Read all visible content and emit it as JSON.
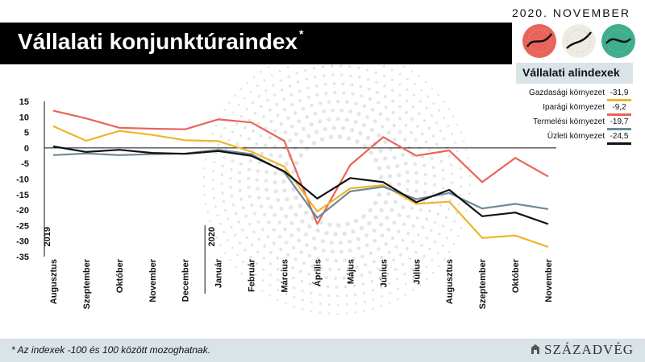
{
  "header": {
    "date": "2020. NOVEMBER",
    "title": "Vállalati konjunktúraindex",
    "title_mark": "*"
  },
  "legend": {
    "title": "Vállalati alindexek",
    "items": [
      {
        "name": "Gazdasági környezet",
        "value": "-31,9",
        "color": "#f0b429"
      },
      {
        "name": "Iparági környezet",
        "value": "-9,2",
        "color": "#e8645a"
      },
      {
        "name": "Termelési környezet",
        "value": "-19,7",
        "color": "#6b8a96"
      },
      {
        "name": "Üzleti környezet",
        "value": "-24,5",
        "color": "#111111"
      }
    ]
  },
  "footer": {
    "note": "* Az indexek -100 és 100 között mozoghatnak.",
    "brand": "SZÁZADVÉG"
  },
  "chart_data": {
    "type": "line",
    "ylim": [
      -35,
      15
    ],
    "yticks": [
      15,
      10,
      5,
      0,
      -5,
      -10,
      -15,
      -20,
      -25,
      -30,
      -35
    ],
    "categories": [
      "Augusztus",
      "Szeptember",
      "Október",
      "November",
      "December",
      "Január",
      "Február",
      "Március",
      "Április",
      "Május",
      "Június",
      "Július",
      "Augusztus",
      "Szeptember",
      "Október",
      "November"
    ],
    "year_labels": [
      {
        "label": "2019",
        "index": 0
      },
      {
        "label": "2020",
        "index": 5
      }
    ],
    "series": [
      {
        "name": "Iparági környezet",
        "color": "#e8645a",
        "values": [
          12,
          9.5,
          6.5,
          6.2,
          6,
          9.2,
          8.2,
          2.3,
          -24.5,
          -5.5,
          3.5,
          -2.5,
          -0.8,
          -11,
          -3.2,
          -9.2
        ]
      },
      {
        "name": "Gazdasági környezet",
        "color": "#f0b429",
        "values": [
          7,
          2.3,
          5.5,
          4.2,
          2.5,
          2.2,
          -1.2,
          -6,
          -20.5,
          -13,
          -12,
          -18,
          -17.3,
          -29,
          -28.2,
          -31.9
        ]
      },
      {
        "name": "Termelési környezet",
        "color": "#6b8a96",
        "values": [
          -2.3,
          -1.8,
          -2.3,
          -2.0,
          -1.8,
          -0.6,
          -2.0,
          -7.8,
          -22.5,
          -14,
          -12.5,
          -16.5,
          -14.5,
          -19.5,
          -18,
          -19.7
        ]
      },
      {
        "name": "Üzleti környezet",
        "color": "#111111",
        "values": [
          0.5,
          -1.3,
          -0.6,
          -1.6,
          -1.9,
          -1.0,
          -2.5,
          -7.5,
          -16.3,
          -9.7,
          -11,
          -17.5,
          -13.5,
          -22,
          -20.8,
          -24.5
        ]
      }
    ]
  }
}
